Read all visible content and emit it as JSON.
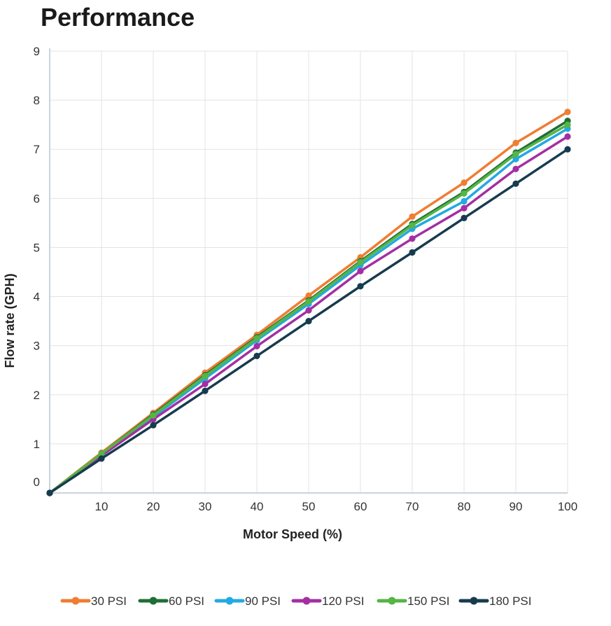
{
  "chart_data": {
    "type": "line",
    "title": "Performance",
    "xlabel": "Motor Speed (%)",
    "ylabel": "Flow rate (GPH)",
    "xlim": [
      0,
      100
    ],
    "ylim": [
      0,
      9
    ],
    "x_ticks": [
      10,
      20,
      30,
      40,
      50,
      60,
      70,
      80,
      90,
      100
    ],
    "y_ticks": [
      0,
      1,
      2,
      3,
      4,
      5,
      6,
      7,
      8,
      9
    ],
    "grid": true,
    "legend_position": "bottom",
    "x": [
      0,
      10,
      20,
      30,
      40,
      50,
      60,
      70,
      80,
      90,
      100
    ],
    "series": [
      {
        "name": "30 PSI",
        "color": "#ef7d33",
        "values": [
          0,
          0.82,
          1.63,
          2.45,
          3.22,
          4.02,
          4.8,
          5.63,
          6.32,
          7.13,
          7.76
        ]
      },
      {
        "name": "60 PSI",
        "color": "#1f6e35",
        "values": [
          0,
          0.8,
          1.6,
          2.4,
          3.17,
          3.92,
          4.72,
          5.48,
          6.13,
          6.93,
          7.58
        ]
      },
      {
        "name": "90 PSI",
        "color": "#23a9e1",
        "values": [
          0,
          0.78,
          1.55,
          2.33,
          3.11,
          3.85,
          4.64,
          5.38,
          5.94,
          6.8,
          7.42
        ]
      },
      {
        "name": "120 PSI",
        "color": "#a32fa3",
        "values": [
          0,
          0.76,
          1.5,
          2.22,
          2.99,
          3.72,
          4.52,
          5.18,
          5.8,
          6.6,
          7.26
        ]
      },
      {
        "name": "150 PSI",
        "color": "#55b545",
        "values": [
          0,
          0.8,
          1.58,
          2.38,
          3.15,
          3.9,
          4.7,
          5.45,
          6.1,
          6.9,
          7.5
        ]
      },
      {
        "name": "180 PSI",
        "color": "#173b4e",
        "values": [
          0,
          0.7,
          1.38,
          2.08,
          2.79,
          3.5,
          4.21,
          4.9,
          5.6,
          6.3,
          7.0
        ]
      }
    ]
  }
}
